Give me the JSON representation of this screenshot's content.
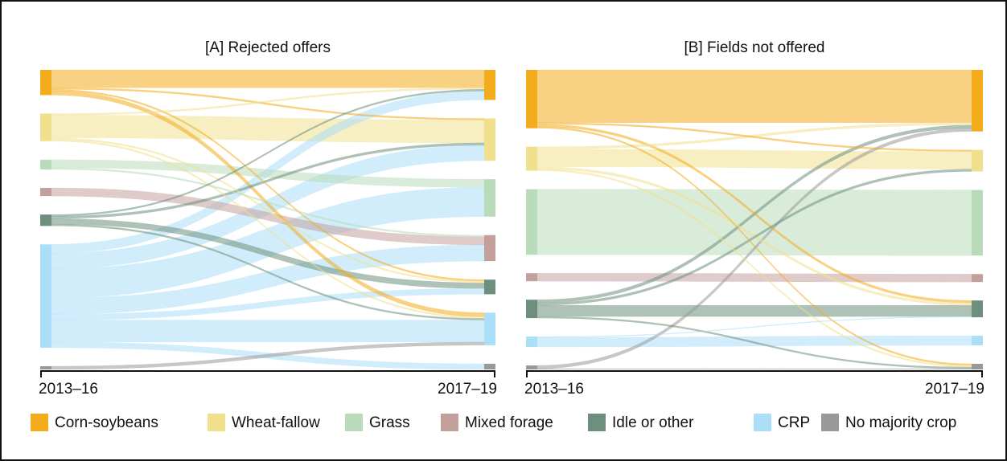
{
  "legend": [
    {
      "name": "Corn-soybeans",
      "color": "#f2ac1c"
    },
    {
      "name": "Wheat-fallow",
      "color": "#f0e08e"
    },
    {
      "name": "Grass",
      "color": "#b9dbb9"
    },
    {
      "name": "Mixed forage",
      "color": "#c4a09c"
    },
    {
      "name": "Idle or other",
      "color": "#6e8f7e"
    },
    {
      "name": "CRP",
      "color": "#abdff7"
    },
    {
      "name": "No majority crop",
      "color": "#999999"
    }
  ],
  "chart_data": [
    {
      "type": "sankey",
      "title": "[A] Rejected offers",
      "x_labels": [
        "2013–16",
        "2017–19"
      ],
      "links": [
        {
          "source": "Corn-soybeans",
          "target": "Corn-soybeans",
          "value": 22
        },
        {
          "source": "Corn-soybeans",
          "target": "Wheat-fallow",
          "value": 2
        },
        {
          "source": "Corn-soybeans",
          "target": "Idle or other",
          "value": 2
        },
        {
          "source": "Corn-soybeans",
          "target": "CRP",
          "value": 5
        },
        {
          "source": "Wheat-fallow",
          "target": "Corn-soybeans",
          "value": 2
        },
        {
          "source": "Wheat-fallow",
          "target": "Wheat-fallow",
          "value": 28
        },
        {
          "source": "Wheat-fallow",
          "target": "Idle or other",
          "value": 2
        },
        {
          "source": "Wheat-fallow",
          "target": "CRP",
          "value": 2
        },
        {
          "source": "Grass",
          "target": "Grass",
          "value": 10
        },
        {
          "source": "Grass",
          "target": "Mixed forage",
          "value": 2
        },
        {
          "source": "Mixed forage",
          "target": "Mixed forage",
          "value": 10
        },
        {
          "source": "Idle or other",
          "target": "Corn-soybeans",
          "value": 2
        },
        {
          "source": "Idle or other",
          "target": "Wheat-fallow",
          "value": 3
        },
        {
          "source": "Idle or other",
          "target": "Idle or other",
          "value": 7
        },
        {
          "source": "Idle or other",
          "target": "CRP",
          "value": 2
        },
        {
          "source": "CRP",
          "target": "Corn-soybeans",
          "value": 11
        },
        {
          "source": "CRP",
          "target": "Wheat-fallow",
          "value": 19
        },
        {
          "source": "CRP",
          "target": "Grass",
          "value": 36
        },
        {
          "source": "CRP",
          "target": "Mixed forage",
          "value": 20
        },
        {
          "source": "CRP",
          "target": "Idle or other",
          "value": 7
        },
        {
          "source": "CRP",
          "target": "CRP",
          "value": 27
        },
        {
          "source": "CRP",
          "target": "No majority crop",
          "value": 7
        },
        {
          "source": "No majority crop",
          "target": "CRP",
          "value": 4
        }
      ]
    },
    {
      "type": "sankey",
      "title": "[B] Fields not offered",
      "x_labels": [
        "2013–16",
        "2017–19"
      ],
      "links": [
        {
          "source": "Corn-soybeans",
          "target": "Corn-soybeans",
          "value": 66
        },
        {
          "source": "Corn-soybeans",
          "target": "Wheat-fallow",
          "value": 2
        },
        {
          "source": "Corn-soybeans",
          "target": "Idle or other",
          "value": 3
        },
        {
          "source": "Corn-soybeans",
          "target": "No majority crop",
          "value": 2
        },
        {
          "source": "Wheat-fallow",
          "target": "Corn-soybeans",
          "value": 3
        },
        {
          "source": "Wheat-fallow",
          "target": "Wheat-fallow",
          "value": 22
        },
        {
          "source": "Wheat-fallow",
          "target": "Idle or other",
          "value": 3
        },
        {
          "source": "Wheat-fallow",
          "target": "No majority crop",
          "value": 2
        },
        {
          "source": "Grass",
          "target": "Grass",
          "value": 82
        },
        {
          "source": "Mixed forage",
          "target": "Mixed forage",
          "value": 10
        },
        {
          "source": "Idle or other",
          "target": "Corn-soybeans",
          "value": 4
        },
        {
          "source": "Idle or other",
          "target": "Wheat-fallow",
          "value": 3
        },
        {
          "source": "Idle or other",
          "target": "Idle or other",
          "value": 14
        },
        {
          "source": "Idle or other",
          "target": "No majority crop",
          "value": 2
        },
        {
          "source": "CRP",
          "target": "Idle or other",
          "value": 1
        },
        {
          "source": "CRP",
          "target": "CRP",
          "value": 12
        },
        {
          "source": "No majority crop",
          "target": "Corn-soybeans",
          "value": 4
        },
        {
          "source": "No majority crop",
          "target": "No majority crop",
          "value": 1
        }
      ]
    }
  ]
}
